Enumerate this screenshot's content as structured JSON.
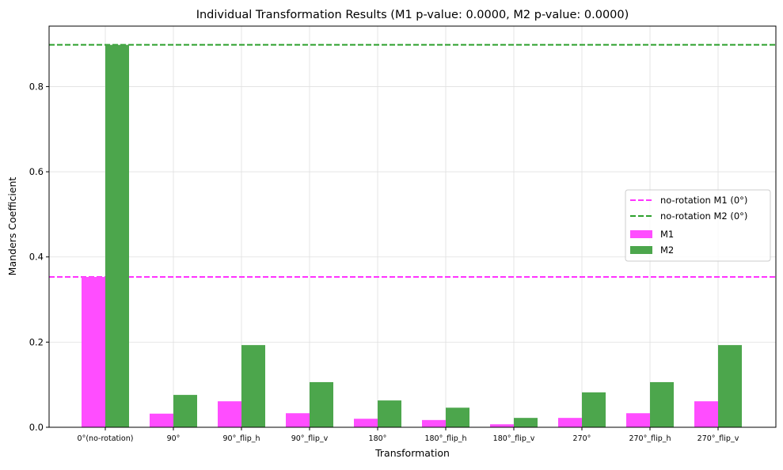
{
  "chart_data": {
    "type": "bar",
    "title": "Individual Transformation Results (M1 p-value: 0.0000, M2 p-value: 0.0000)",
    "xlabel": "Transformation",
    "ylabel": "Manders Coefficient",
    "ylim": [
      0,
      0.942
    ],
    "yticks": [
      0.0,
      0.2,
      0.4,
      0.6,
      0.8
    ],
    "ytick_labels": [
      "0.0",
      "0.2",
      "0.4",
      "0.6",
      "0.8"
    ],
    "grid": true,
    "legend_placement": "center-right",
    "categories": [
      "0°(no-rotation)",
      "90°",
      "90°_flip_h",
      "90°_flip_v",
      "180°",
      "180°_flip_h",
      "180°_flip_v",
      "270°",
      "270°_flip_h",
      "270°_flip_v"
    ],
    "series": [
      {
        "name": "M1",
        "color": "#ff4dff",
        "values": [
          0.353,
          0.032,
          0.061,
          0.033,
          0.02,
          0.017,
          0.007,
          0.022,
          0.033,
          0.061
        ]
      },
      {
        "name": "M2",
        "color": "#4ca64c",
        "values": [
          0.898,
          0.076,
          0.193,
          0.106,
          0.063,
          0.046,
          0.022,
          0.082,
          0.106,
          0.193
        ]
      }
    ],
    "reference_lines": [
      {
        "name": "no-rotation M1 (0°)",
        "value": 0.353,
        "color": "#ff33ff",
        "style": "dashed"
      },
      {
        "name": "no-rotation M2 (0°)",
        "value": 0.898,
        "color": "#2ca02c",
        "style": "dashed"
      }
    ]
  }
}
